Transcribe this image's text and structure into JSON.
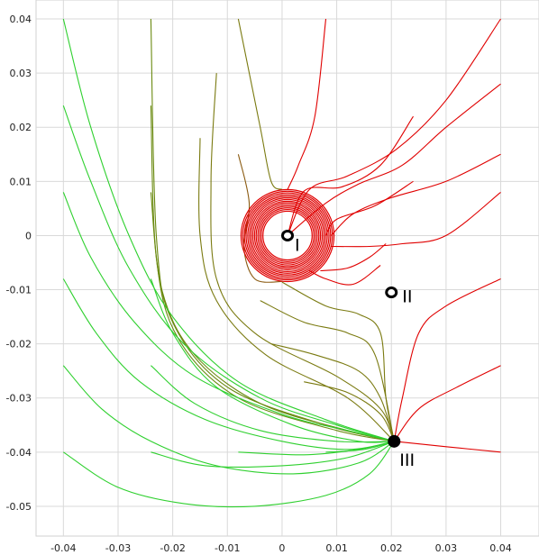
{
  "chart_data": {
    "type": "line",
    "title": "",
    "xlabel": "",
    "ylabel": "",
    "xlim": [
      -0.045,
      0.047
    ],
    "ylim": [
      -0.0555,
      0.0435
    ],
    "grid": true,
    "x_ticks": [
      -0.04,
      -0.03,
      -0.02,
      -0.01,
      0,
      0.01,
      0.02,
      0.03,
      0.04
    ],
    "x_tick_labels": [
      "-0.04",
      "-0.03",
      "-0.02",
      "-0.01",
      "0",
      "0.01",
      "0.02",
      "0.03",
      "0.04"
    ],
    "y_ticks": [
      0.04,
      0.03,
      0.02,
      0.01,
      0,
      -0.01,
      -0.02,
      -0.03,
      -0.04,
      -0.05
    ],
    "y_tick_labels": [
      "0.04",
      "0.03",
      "0.02",
      "0.01",
      "0",
      "-0.01",
      "-0.02",
      "-0.03",
      "-0.04",
      "-0.05"
    ],
    "colors": {
      "attracted_to_I": "#e00000",
      "mixed": "#7a7a10",
      "attracted_to_III": "#2fd02f"
    },
    "fixed_points": [
      {
        "label": "I",
        "x": 0.001,
        "y": 0.0,
        "marker": "open"
      },
      {
        "label": "II",
        "x": 0.02,
        "y": -0.0105,
        "marker": "open"
      },
      {
        "label": "III",
        "x": 0.0205,
        "y": -0.038,
        "marker": "filled"
      }
    ],
    "limit_cycle": {
      "cx": 0.001,
      "cy": 0.0,
      "rx_min": 0.0045,
      "rx_max": 0.0085,
      "ry_min": 0.0045,
      "ry_max": 0.0085,
      "color": "#e00000"
    },
    "series": [
      {
        "group": "red",
        "color": "#e00000",
        "points": [
          [
            0.04,
            0.04
          ],
          [
            0.03,
            0.025
          ],
          [
            0.021,
            0.016
          ],
          [
            0.012,
            0.011
          ],
          [
            0.005,
            0.0085
          ],
          [
            0.001,
            0.0
          ]
        ]
      },
      {
        "group": "red",
        "color": "#e00000",
        "points": [
          [
            0.04,
            0.028
          ],
          [
            0.03,
            0.02
          ],
          [
            0.022,
            0.013
          ],
          [
            0.014,
            0.0095
          ],
          [
            0.008,
            0.006
          ],
          [
            0.001,
            0.0
          ]
        ]
      },
      {
        "group": "red",
        "color": "#e00000",
        "points": [
          [
            0.04,
            0.015
          ],
          [
            0.03,
            0.01
          ],
          [
            0.02,
            0.007
          ],
          [
            0.013,
            0.004
          ],
          [
            0.009,
            0.0
          ]
        ]
      },
      {
        "group": "red",
        "color": "#e00000",
        "points": [
          [
            0.04,
            0.008
          ],
          [
            0.03,
            0.0
          ],
          [
            0.022,
            -0.0015
          ],
          [
            0.016,
            -0.002
          ],
          [
            0.009,
            -0.002
          ]
        ]
      },
      {
        "group": "red",
        "color": "#e00000",
        "points": [
          [
            0.04,
            -0.008
          ],
          [
            0.03,
            -0.013
          ],
          [
            0.025,
            -0.018
          ],
          [
            0.022,
            -0.03
          ],
          [
            0.0205,
            -0.038
          ]
        ]
      },
      {
        "group": "red",
        "color": "#e00000",
        "points": [
          [
            0.04,
            -0.024
          ],
          [
            0.032,
            -0.028
          ],
          [
            0.025,
            -0.032
          ],
          [
            0.0205,
            -0.038
          ]
        ]
      },
      {
        "group": "red",
        "color": "#e00000",
        "points": [
          [
            0.04,
            -0.04
          ],
          [
            0.03,
            -0.039
          ],
          [
            0.0205,
            -0.038
          ]
        ]
      },
      {
        "group": "red",
        "color": "#e00000",
        "points": [
          [
            0.024,
            0.022
          ],
          [
            0.018,
            0.013
          ],
          [
            0.011,
            0.009
          ],
          [
            0.004,
            0.0082
          ],
          [
            0.001,
            0.0
          ]
        ]
      },
      {
        "group": "red",
        "color": "#e00000",
        "points": [
          [
            0.024,
            0.01
          ],
          [
            0.017,
            0.0055
          ],
          [
            0.01,
            0.003
          ],
          [
            0.008,
            0.0
          ]
        ]
      },
      {
        "group": "red",
        "color": "#e00000",
        "points": [
          [
            0.019,
            -0.0015
          ],
          [
            0.016,
            -0.004
          ],
          [
            0.012,
            -0.006
          ],
          [
            0.007,
            -0.0065
          ]
        ]
      },
      {
        "group": "red",
        "color": "#e00000",
        "points": [
          [
            0.018,
            -0.0055
          ],
          [
            0.013,
            -0.009
          ],
          [
            0.008,
            -0.008
          ],
          [
            0.005,
            -0.0065
          ]
        ]
      },
      {
        "group": "red",
        "color": "#e00000",
        "points": [
          [
            0.008,
            0.04
          ],
          [
            0.006,
            0.022
          ],
          [
            0.003,
            0.013
          ],
          [
            0.001,
            0.0085
          ]
        ]
      },
      {
        "group": "mixed",
        "color": "#7a7a10",
        "points": [
          [
            -0.008,
            0.04
          ],
          [
            -0.004,
            0.02
          ],
          [
            -0.002,
            0.01
          ],
          [
            0.0,
            0.0085
          ]
        ]
      },
      {
        "group": "mixed",
        "color": "#8a5a10",
        "points": [
          [
            -0.008,
            0.015
          ],
          [
            -0.006,
            0.006
          ],
          [
            -0.007,
            -0.002
          ],
          [
            -0.005,
            -0.008
          ],
          [
            0.0,
            -0.0085
          ]
        ]
      },
      {
        "group": "mixed",
        "color": "#7a7a10",
        "points": [
          [
            -0.012,
            0.03
          ],
          [
            -0.013,
            0.01
          ],
          [
            -0.012,
            -0.008
          ],
          [
            -0.005,
            -0.018
          ],
          [
            0.01,
            -0.026
          ],
          [
            0.018,
            -0.032
          ],
          [
            0.0205,
            -0.038
          ]
        ]
      },
      {
        "group": "mixed",
        "color": "#7a7a10",
        "points": [
          [
            -0.015,
            0.018
          ],
          [
            -0.015,
            0.0
          ],
          [
            -0.012,
            -0.012
          ],
          [
            -0.003,
            -0.022
          ],
          [
            0.012,
            -0.03
          ],
          [
            0.0205,
            -0.038
          ]
        ]
      },
      {
        "group": "mixed",
        "color": "#6a8a10",
        "points": [
          [
            -0.024,
            0.04
          ],
          [
            -0.023,
            0.0
          ],
          [
            -0.02,
            -0.016
          ],
          [
            -0.01,
            -0.028
          ],
          [
            0.008,
            -0.035
          ],
          [
            0.0205,
            -0.038
          ]
        ]
      },
      {
        "group": "mixed",
        "color": "#6a8a10",
        "points": [
          [
            -0.024,
            0.024
          ],
          [
            -0.023,
            -0.004
          ],
          [
            -0.019,
            -0.019
          ],
          [
            -0.008,
            -0.03
          ],
          [
            0.01,
            -0.036
          ],
          [
            0.0205,
            -0.038
          ]
        ]
      },
      {
        "group": "mixed",
        "color": "#6a8a10",
        "points": [
          [
            -0.024,
            0.008
          ],
          [
            -0.022,
            -0.01
          ],
          [
            -0.016,
            -0.022
          ],
          [
            -0.004,
            -0.031
          ],
          [
            0.012,
            -0.036
          ],
          [
            0.0205,
            -0.038
          ]
        ]
      },
      {
        "group": "mixed",
        "color": "#7a7a10",
        "points": [
          [
            0.0,
            -0.0086
          ],
          [
            0.008,
            -0.013
          ],
          [
            0.014,
            -0.0145
          ],
          [
            0.018,
            -0.018
          ],
          [
            0.019,
            -0.03
          ],
          [
            0.0205,
            -0.038
          ]
        ]
      },
      {
        "group": "mixed",
        "color": "#7a7a10",
        "points": [
          [
            -0.004,
            -0.012
          ],
          [
            0.004,
            -0.016
          ],
          [
            0.012,
            -0.018
          ],
          [
            0.017,
            -0.022
          ],
          [
            0.0205,
            -0.038
          ]
        ]
      },
      {
        "group": "mixed",
        "color": "#7a7a10",
        "points": [
          [
            -0.002,
            -0.02
          ],
          [
            0.006,
            -0.022
          ],
          [
            0.014,
            -0.025
          ],
          [
            0.018,
            -0.03
          ],
          [
            0.0205,
            -0.038
          ]
        ]
      },
      {
        "group": "mixed",
        "color": "#7a7a10",
        "points": [
          [
            0.004,
            -0.027
          ],
          [
            0.012,
            -0.029
          ],
          [
            0.018,
            -0.033
          ],
          [
            0.0205,
            -0.038
          ]
        ]
      },
      {
        "group": "green",
        "color": "#2fd02f",
        "points": [
          [
            -0.04,
            0.04
          ],
          [
            -0.035,
            0.02
          ],
          [
            -0.028,
            0.0
          ],
          [
            -0.02,
            -0.015
          ],
          [
            -0.008,
            -0.027
          ],
          [
            0.008,
            -0.034
          ],
          [
            0.0205,
            -0.038
          ]
        ]
      },
      {
        "group": "green",
        "color": "#2fd02f",
        "points": [
          [
            -0.04,
            0.024
          ],
          [
            -0.035,
            0.01
          ],
          [
            -0.028,
            -0.006
          ],
          [
            -0.018,
            -0.02
          ],
          [
            -0.004,
            -0.03
          ],
          [
            0.01,
            -0.035
          ],
          [
            0.0205,
            -0.038
          ]
        ]
      },
      {
        "group": "green",
        "color": "#2fd02f",
        "points": [
          [
            -0.04,
            0.008
          ],
          [
            -0.035,
            -0.004
          ],
          [
            -0.027,
            -0.016
          ],
          [
            -0.016,
            -0.026
          ],
          [
            0.0,
            -0.033
          ],
          [
            0.012,
            -0.036
          ],
          [
            0.0205,
            -0.038
          ]
        ]
      },
      {
        "group": "green",
        "color": "#2fd02f",
        "points": [
          [
            -0.04,
            -0.008
          ],
          [
            -0.034,
            -0.018
          ],
          [
            -0.026,
            -0.027
          ],
          [
            -0.014,
            -0.034
          ],
          [
            0.0,
            -0.038
          ],
          [
            0.012,
            -0.0395
          ],
          [
            0.0205,
            -0.038
          ]
        ]
      },
      {
        "group": "green",
        "color": "#2fd02f",
        "points": [
          [
            -0.04,
            -0.024
          ],
          [
            -0.033,
            -0.032
          ],
          [
            -0.024,
            -0.038
          ],
          [
            -0.012,
            -0.0425
          ],
          [
            0.002,
            -0.044
          ],
          [
            0.014,
            -0.042
          ],
          [
            0.0205,
            -0.038
          ]
        ]
      },
      {
        "group": "green",
        "color": "#2fd02f",
        "points": [
          [
            -0.04,
            -0.04
          ],
          [
            -0.03,
            -0.0465
          ],
          [
            -0.018,
            -0.0495
          ],
          [
            -0.005,
            -0.05
          ],
          [
            0.008,
            -0.048
          ],
          [
            0.016,
            -0.044
          ],
          [
            0.0205,
            -0.038
          ]
        ]
      },
      {
        "group": "green",
        "color": "#2fd02f",
        "points": [
          [
            -0.024,
            -0.008
          ],
          [
            -0.02,
            -0.018
          ],
          [
            -0.012,
            -0.028
          ],
          [
            0.002,
            -0.035
          ],
          [
            0.014,
            -0.038
          ],
          [
            0.0205,
            -0.038
          ]
        ]
      },
      {
        "group": "green",
        "color": "#2fd02f",
        "points": [
          [
            -0.024,
            -0.04
          ],
          [
            -0.014,
            -0.0425
          ],
          [
            0.0,
            -0.0425
          ],
          [
            0.012,
            -0.041
          ],
          [
            0.0205,
            -0.038
          ]
        ]
      },
      {
        "group": "green",
        "color": "#2fd02f",
        "points": [
          [
            -0.024,
            -0.024
          ],
          [
            -0.016,
            -0.031
          ],
          [
            -0.004,
            -0.036
          ],
          [
            0.01,
            -0.038
          ],
          [
            0.0205,
            -0.038
          ]
        ]
      },
      {
        "group": "green",
        "color": "#2fd02f",
        "points": [
          [
            -0.008,
            -0.04
          ],
          [
            0.004,
            -0.0405
          ],
          [
            0.014,
            -0.0395
          ],
          [
            0.0205,
            -0.038
          ]
        ]
      },
      {
        "group": "green",
        "color": "#2fd02f",
        "points": [
          [
            0.008,
            -0.04
          ],
          [
            0.015,
            -0.0395
          ],
          [
            0.0205,
            -0.038
          ]
        ]
      }
    ]
  }
}
